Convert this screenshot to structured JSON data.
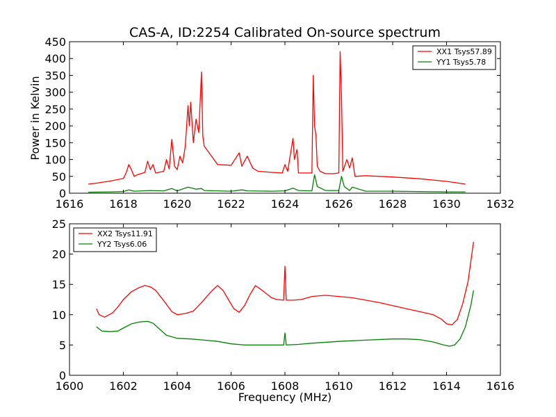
{
  "chart_data": [
    {
      "type": "line",
      "title": "CAS-A, ID:2254 Calibrated On-source spectrum",
      "xlabel": "",
      "ylabel": "Power in Kelvin",
      "xlim": [
        1616,
        1632
      ],
      "ylim": [
        0,
        450
      ],
      "xticks": [
        1616,
        1618,
        1620,
        1622,
        1624,
        1626,
        1628,
        1630,
        1632
      ],
      "yticks": [
        0,
        50,
        100,
        150,
        200,
        250,
        300,
        350,
        400,
        450
      ],
      "legend_position": "top-right",
      "grid": false,
      "series": [
        {
          "name": "XX1 Tsys57.89",
          "color": "#ff0000",
          "x": [
            1616.7,
            1617.0,
            1617.5,
            1618.0,
            1618.1,
            1618.2,
            1618.3,
            1618.4,
            1618.5,
            1618.8,
            1618.9,
            1619.0,
            1619.1,
            1619.2,
            1619.5,
            1619.6,
            1619.7,
            1619.8,
            1619.9,
            1620.0,
            1620.1,
            1620.2,
            1620.3,
            1620.4,
            1620.45,
            1620.5,
            1620.6,
            1620.7,
            1620.8,
            1620.9,
            1620.95,
            1621.0,
            1621.5,
            1622.0,
            1622.3,
            1622.4,
            1622.6,
            1622.8,
            1623.0,
            1623.5,
            1623.9,
            1624.0,
            1624.1,
            1624.3,
            1624.35,
            1624.45,
            1624.5,
            1624.8,
            1625.0,
            1625.05,
            1625.1,
            1625.15,
            1625.2,
            1625.3,
            1625.5,
            1625.8,
            1626.0,
            1626.05,
            1626.1,
            1626.15,
            1626.3,
            1626.4,
            1626.5,
            1626.6,
            1627.0,
            1628.0,
            1629.0,
            1630.0,
            1630.7
          ],
          "y": [
            27,
            30,
            36,
            44,
            60,
            85,
            70,
            50,
            54,
            62,
            95,
            70,
            85,
            60,
            65,
            100,
            72,
            160,
            80,
            70,
            110,
            90,
            140,
            260,
            200,
            270,
            150,
            220,
            180,
            360,
            170,
            140,
            85,
            83,
            120,
            80,
            110,
            75,
            65,
            62,
            60,
            85,
            65,
            163,
            100,
            130,
            60,
            60,
            60,
            350,
            200,
            172,
            80,
            65,
            58,
            58,
            60,
            420,
            285,
            65,
            100,
            75,
            105,
            50,
            52,
            48,
            43,
            35,
            27
          ]
        },
        {
          "name": "YY1 Tsys5.78",
          "color": "#008000",
          "x": [
            1616.7,
            1617.5,
            1618.0,
            1618.2,
            1618.4,
            1619.0,
            1619.5,
            1619.8,
            1620.0,
            1620.4,
            1620.5,
            1620.7,
            1620.9,
            1621.0,
            1622.0,
            1622.4,
            1622.6,
            1623.5,
            1624.0,
            1624.3,
            1624.5,
            1625.0,
            1625.1,
            1625.2,
            1625.5,
            1626.0,
            1626.1,
            1626.2,
            1626.4,
            1626.5,
            1627.0,
            1628.0,
            1629.0,
            1630.0,
            1630.7
          ],
          "y": [
            3,
            4,
            5,
            10,
            6,
            8,
            7,
            14,
            7,
            18,
            16,
            12,
            14,
            8,
            6,
            10,
            7,
            6,
            7,
            15,
            8,
            7,
            55,
            20,
            8,
            8,
            50,
            20,
            8,
            18,
            6,
            6,
            5,
            4,
            4
          ]
        }
      ]
    },
    {
      "type": "line",
      "title": "",
      "xlabel": "Frequency (MHz)",
      "ylabel": "",
      "xlim": [
        1600,
        1616
      ],
      "ylim": [
        0,
        25
      ],
      "xticks": [
        1600,
        1602,
        1604,
        1606,
        1608,
        1610,
        1612,
        1614,
        1616
      ],
      "yticks": [
        0,
        5,
        10,
        15,
        20,
        25
      ],
      "legend_position": "top-left",
      "grid": false,
      "series": [
        {
          "name": "XX2 Tsys11.91",
          "color": "#ff0000",
          "x": [
            1601.0,
            1601.1,
            1601.3,
            1601.6,
            1601.8,
            1602.0,
            1602.3,
            1602.6,
            1602.8,
            1603.0,
            1603.2,
            1603.5,
            1603.8,
            1604.0,
            1604.3,
            1604.6,
            1604.9,
            1605.1,
            1605.3,
            1605.5,
            1605.7,
            1605.9,
            1606.1,
            1606.3,
            1606.5,
            1606.7,
            1606.9,
            1607.1,
            1607.3,
            1607.5,
            1607.7,
            1607.95,
            1608.0,
            1608.05,
            1608.3,
            1608.6,
            1609.0,
            1609.5,
            1610.0,
            1610.5,
            1611.0,
            1611.5,
            1612.0,
            1612.5,
            1613.0,
            1613.5,
            1613.8,
            1614.0,
            1614.2,
            1614.4,
            1614.6,
            1614.8,
            1615.0
          ],
          "y": [
            11.0,
            10.0,
            9.6,
            10.3,
            11.3,
            12.5,
            13.8,
            14.5,
            14.8,
            14.6,
            14.0,
            12.3,
            10.5,
            10.0,
            10.2,
            10.6,
            12.0,
            13.0,
            14.0,
            14.8,
            14.0,
            12.5,
            11.0,
            10.4,
            11.5,
            13.3,
            14.8,
            14.2,
            13.5,
            12.8,
            12.5,
            12.4,
            18.0,
            12.4,
            12.4,
            12.5,
            13.0,
            13.2,
            13.0,
            12.8,
            12.4,
            12.0,
            11.5,
            11.0,
            10.5,
            10.0,
            9.3,
            8.5,
            8.3,
            9.2,
            11.8,
            15.5,
            22.0
          ]
        },
        {
          "name": "YY2 Tsys6.06",
          "color": "#008000",
          "x": [
            1601.0,
            1601.2,
            1601.5,
            1601.8,
            1602.0,
            1602.3,
            1602.6,
            1602.9,
            1603.1,
            1603.3,
            1603.6,
            1604.0,
            1604.5,
            1605.0,
            1605.5,
            1606.0,
            1606.5,
            1607.0,
            1607.5,
            1607.95,
            1608.0,
            1608.05,
            1608.5,
            1609.0,
            1610.0,
            1611.0,
            1612.0,
            1612.5,
            1613.0,
            1613.5,
            1613.9,
            1614.1,
            1614.3,
            1614.5,
            1614.7,
            1614.9,
            1615.0
          ],
          "y": [
            8.0,
            7.3,
            7.2,
            7.3,
            7.8,
            8.5,
            8.8,
            8.9,
            8.6,
            7.8,
            6.6,
            6.1,
            6.0,
            5.8,
            5.6,
            5.2,
            5.0,
            5.0,
            5.0,
            5.0,
            7.0,
            5.0,
            5.1,
            5.3,
            5.6,
            5.8,
            6.0,
            6.0,
            5.9,
            5.5,
            5.0,
            4.8,
            5.0,
            6.0,
            8.0,
            11.5,
            14.0
          ]
        }
      ]
    }
  ]
}
